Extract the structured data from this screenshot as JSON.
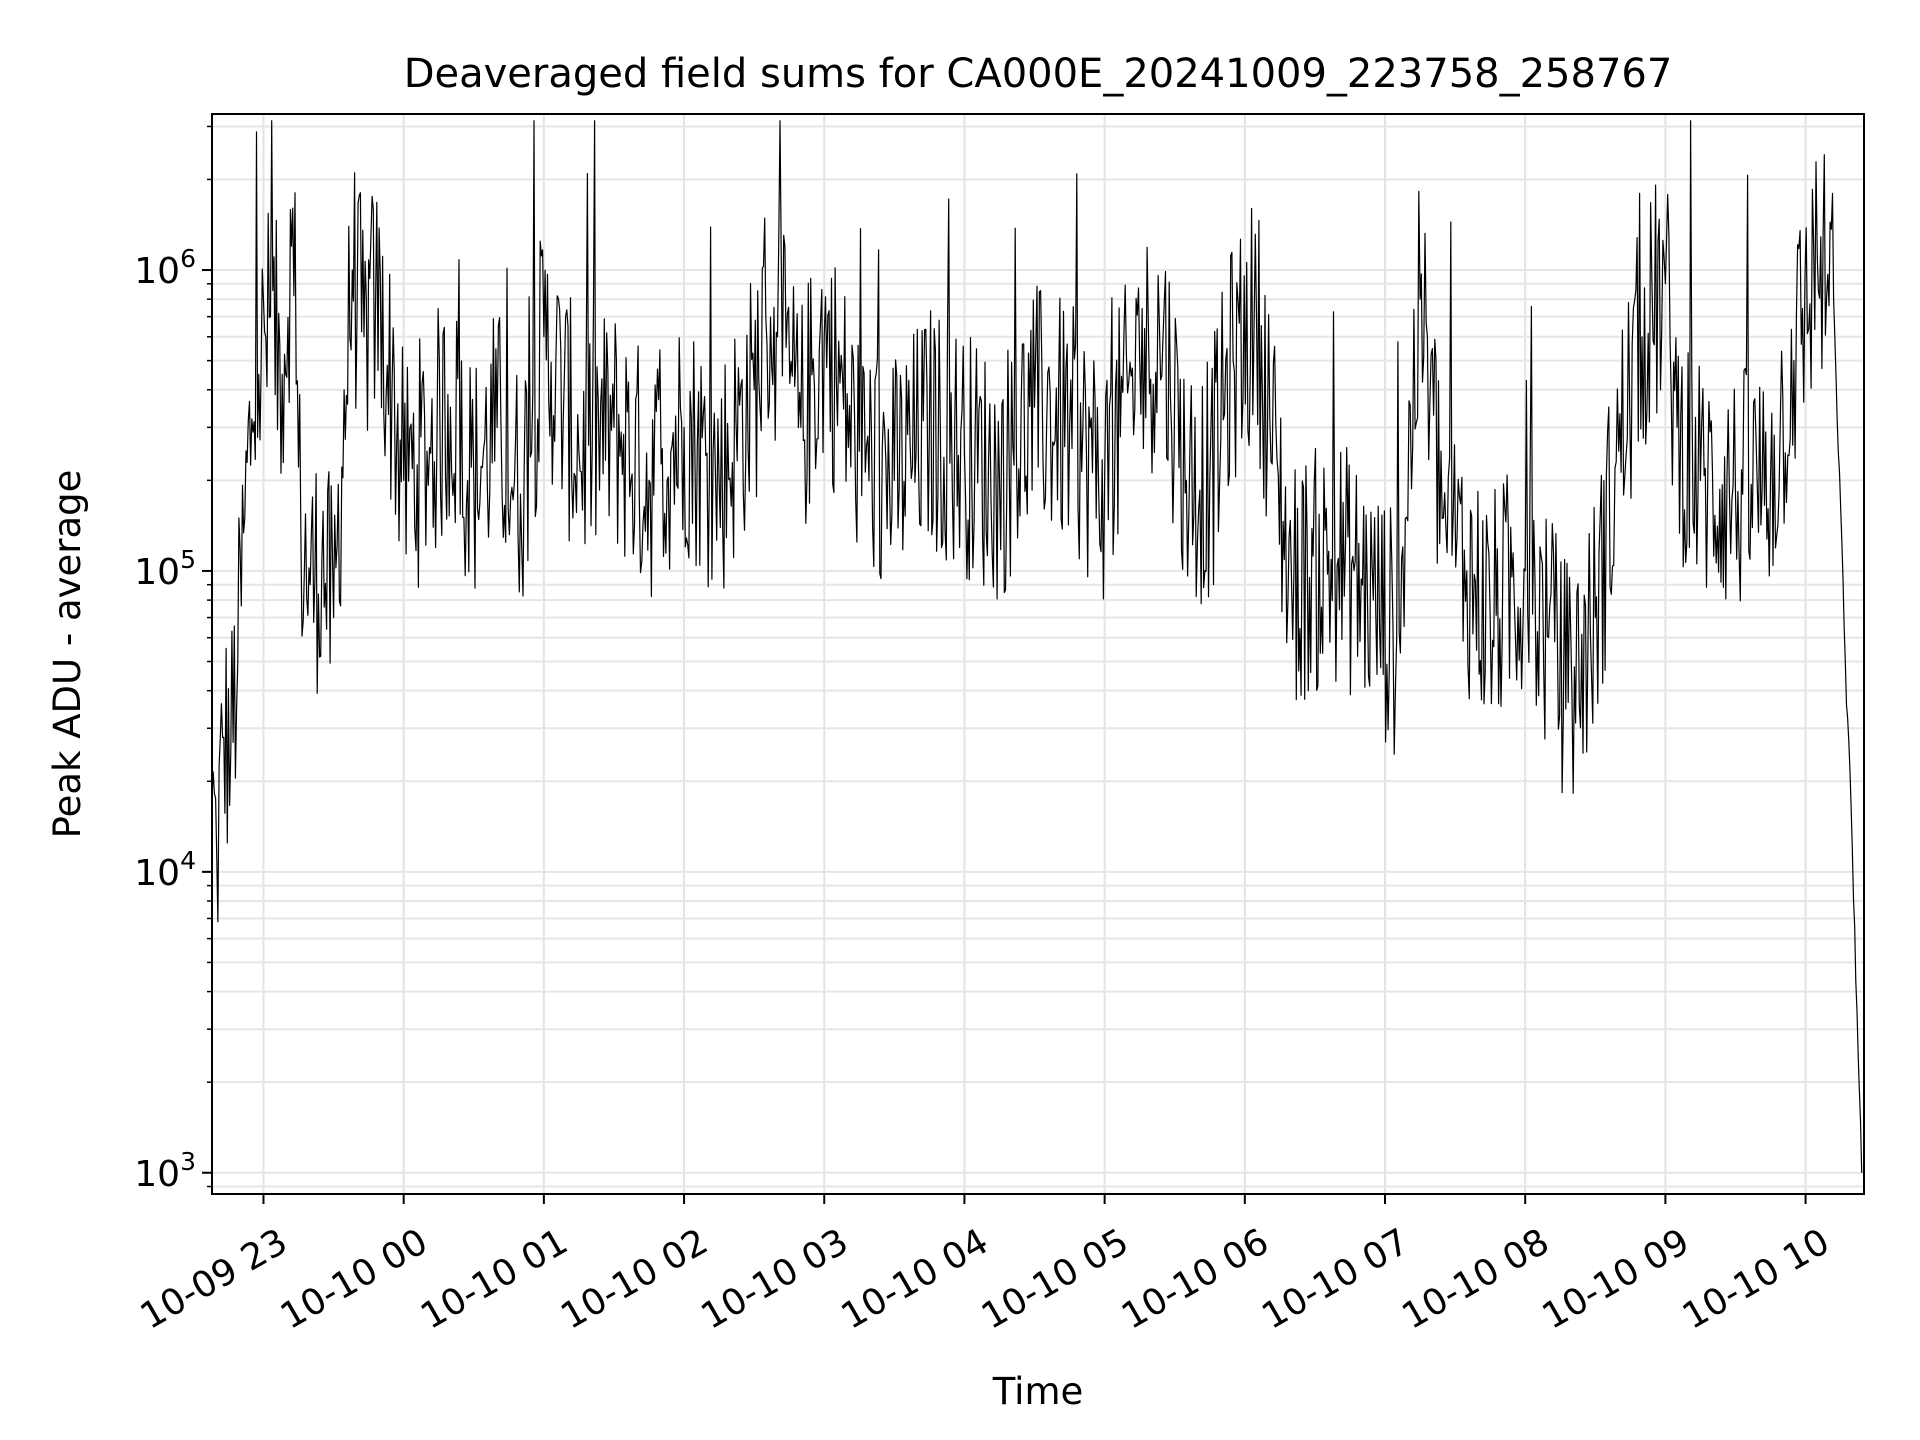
{
  "chart_data": {
    "type": "line",
    "title": "Deaveraged field sums for CA000E_20241009_223758_258767",
    "xlabel": "Time",
    "ylabel": "Peak ADU - average",
    "yscale": "log",
    "ylim": [
      850,
      3300000
    ],
    "xlim": [
      "2024-10-09 22:37:58",
      "2024-10-10 10:25:00"
    ],
    "grid": true,
    "grid_minor_y": true,
    "line_color": "#000000",
    "x_ticks": [
      {
        "label": "10-09 23",
        "time": "2024-10-09 23:00"
      },
      {
        "label": "10-10 00",
        "time": "2024-10-10 00:00"
      },
      {
        "label": "10-10 01",
        "time": "2024-10-10 01:00"
      },
      {
        "label": "10-10 02",
        "time": "2024-10-10 02:00"
      },
      {
        "label": "10-10 03",
        "time": "2024-10-10 03:00"
      },
      {
        "label": "10-10 04",
        "time": "2024-10-10 04:00"
      },
      {
        "label": "10-10 05",
        "time": "2024-10-10 05:00"
      },
      {
        "label": "10-10 06",
        "time": "2024-10-10 06:00"
      },
      {
        "label": "10-10 07",
        "time": "2024-10-10 07:00"
      },
      {
        "label": "10-10 08",
        "time": "2024-10-10 08:00"
      },
      {
        "label": "10-10 09",
        "time": "2024-10-10 09:00"
      },
      {
        "label": "10-10 10",
        "time": "2024-10-10 10:00"
      }
    ],
    "y_ticks": [
      {
        "base": "10",
        "exp": "3",
        "value": 1000
      },
      {
        "base": "10",
        "exp": "4",
        "value": 10000
      },
      {
        "base": "10",
        "exp": "5",
        "value": 100000
      },
      {
        "base": "10",
        "exp": "6",
        "value": 1000000
      }
    ],
    "series": [
      {
        "x": [
          "2024-10-09 22:38",
          "2024-10-09 22:40",
          "2024-10-09 22:43",
          "2024-10-09 22:46",
          "2024-10-09 22:49",
          "2024-10-09 22:52",
          "2024-10-09 22:55",
          "2024-10-09 22:58",
          "2024-10-09 23:03",
          "2024-10-09 23:08",
          "2024-10-09 23:12",
          "2024-10-09 23:16",
          "2024-10-09 23:20",
          "2024-10-09 23:25",
          "2024-10-09 23:30",
          "2024-10-09 23:38",
          "2024-10-09 23:43",
          "2024-10-09 23:48",
          "2024-10-09 23:55",
          "2024-10-10 00:00",
          "2024-10-10 00:10",
          "2024-10-10 00:20",
          "2024-10-10 00:30",
          "2024-10-10 00:40",
          "2024-10-10 00:50",
          "2024-10-10 01:00",
          "2024-10-10 01:15",
          "2024-10-10 01:30",
          "2024-10-10 01:45",
          "2024-10-10 02:00",
          "2024-10-10 02:15",
          "2024-10-10 02:30",
          "2024-10-10 02:35",
          "2024-10-10 02:40",
          "2024-10-10 02:50",
          "2024-10-10 03:00",
          "2024-10-10 03:15",
          "2024-10-10 03:30",
          "2024-10-10 03:45",
          "2024-10-10 04:00",
          "2024-10-10 04:15",
          "2024-10-10 04:30",
          "2024-10-10 04:45",
          "2024-10-10 05:00",
          "2024-10-10 05:15",
          "2024-10-10 05:25",
          "2024-10-10 05:35",
          "2024-10-10 05:45",
          "2024-10-10 05:55",
          "2024-10-10 06:05",
          "2024-10-10 06:20",
          "2024-10-10 06:40",
          "2024-10-10 06:55",
          "2024-10-10 07:05",
          "2024-10-10 07:15",
          "2024-10-10 07:25",
          "2024-10-10 07:35",
          "2024-10-10 07:45",
          "2024-10-10 08:00",
          "2024-10-10 08:10",
          "2024-10-10 08:20",
          "2024-10-10 08:30",
          "2024-10-10 08:40",
          "2024-10-10 08:50",
          "2024-10-10 09:00",
          "2024-10-10 09:05",
          "2024-10-10 09:15",
          "2024-10-10 09:30",
          "2024-10-10 09:45",
          "2024-10-10 09:55",
          "2024-10-10 10:05",
          "2024-10-10 10:12",
          "2024-10-10 10:17",
          "2024-10-10 10:20",
          "2024-10-10 10:24"
        ],
        "y": [
          18000,
          11000,
          28000,
          25000,
          50000,
          150000,
          320000,
          450000,
          700000,
          450000,
          1200000,
          130000,
          90000,
          110000,
          70000,
          1000000,
          600000,
          800000,
          400000,
          200000,
          250000,
          350000,
          200000,
          300000,
          180000,
          600000,
          250000,
          300000,
          200000,
          300000,
          200000,
          400000,
          700000,
          600000,
          300000,
          600000,
          250000,
          200000,
          300000,
          250000,
          200000,
          350000,
          300000,
          200000,
          500000,
          600000,
          200000,
          200000,
          500000,
          700000,
          90000,
          110000,
          80000,
          60000,
          800000,
          150000,
          100000,
          70000,
          100000,
          60000,
          40000,
          70000,
          250000,
          600000,
          900000,
          300000,
          200000,
          180000,
          200000,
          500000,
          1100000,
          800000,
          50000,
          12000,
          1000
        ]
      }
    ]
  }
}
